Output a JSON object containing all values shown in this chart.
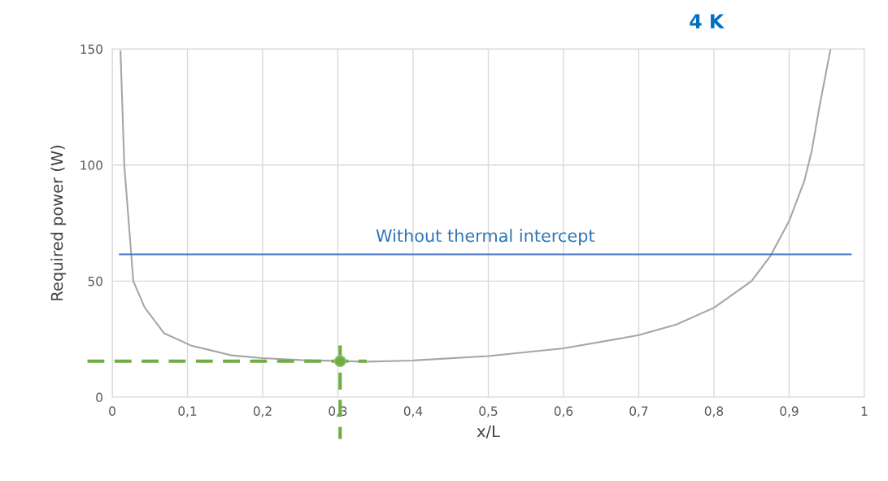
{
  "chart_data": {
    "type": "line",
    "title": "4 K",
    "xlabel": "x/L",
    "ylabel": "Required power (W)",
    "xlim": [
      0,
      1
    ],
    "ylim": [
      0,
      150
    ],
    "xticks": [
      0,
      {
        "value": 0.1,
        "label": "0,1"
      },
      {
        "value": 0.2,
        "label": "0,2"
      },
      {
        "value": 0.3,
        "label": "0,3"
      },
      {
        "value": 0.4,
        "label": "0,4"
      },
      {
        "value": 0.5,
        "label": "0,5"
      },
      {
        "value": 0.6,
        "label": "0,6"
      },
      {
        "value": 0.7,
        "label": "0,7"
      },
      {
        "value": 0.8,
        "label": "0,8"
      },
      {
        "value": 0.9,
        "label": "0,9"
      },
      1
    ],
    "yticks": [
      0,
      50,
      100,
      150
    ],
    "grid": true,
    "marker": "none",
    "line_style": "solid",
    "series": [
      {
        "color": "#a6a6a6",
        "x": [
          0.011,
          0.016,
          0.028,
          0.043,
          0.069,
          0.105,
          0.159,
          0.199,
          0.25,
          0.337,
          0.4,
          0.5,
          0.6,
          0.7,
          0.75,
          0.8,
          0.85,
          0.875,
          0.9,
          0.92,
          0.93,
          0.94,
          0.955
        ],
        "values": [
          149,
          100,
          50,
          38.7,
          27.5,
          22.2,
          18,
          16.8,
          16,
          15.3,
          15.8,
          17.7,
          21,
          26.7,
          31.3,
          38.5,
          50,
          60.8,
          75.9,
          93,
          106,
          124.7,
          149.9
        ]
      },
      {
        "name": "Without thermal intercept",
        "color": "#4472c4",
        "x": [
          0.01,
          0.982
        ],
        "values": [
          61.5,
          61.5
        ]
      },
      {
        "type": "scatter",
        "color": "#70ad47",
        "marker": "circle",
        "x": [
          0.303
        ],
        "values": [
          15.5
        ]
      }
    ],
    "ref_lines": [
      {
        "axis": "y",
        "value": 15.5,
        "color": "#70ad47",
        "line_style": "dashed"
      },
      {
        "axis": "x",
        "value": 0.303,
        "color": "#70ad47",
        "line_style": "dashed"
      }
    ]
  }
}
